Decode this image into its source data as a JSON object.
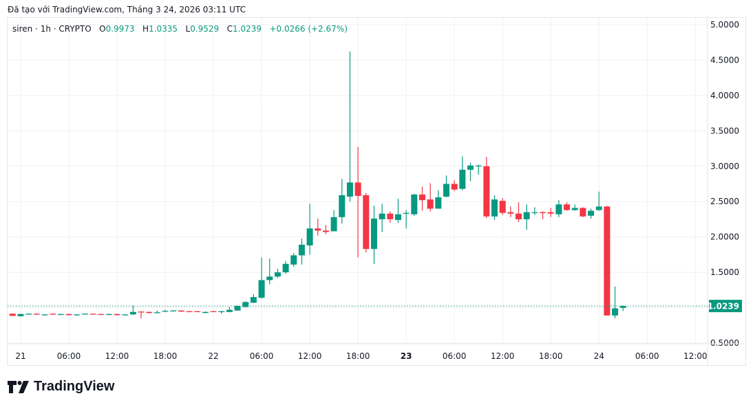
{
  "caption": "Đã tạo với TradingView.com, Tháng 3 24, 2026 03:11 UTC",
  "legend": {
    "symbol": "siren · 1h · CRYPTO",
    "o_label": "O",
    "o": "0.9973",
    "h_label": "H",
    "h": "1.0335",
    "l_label": "L",
    "l": "0.9529",
    "c_label": "C",
    "c": "1.0239",
    "change": "+0.0266 (+2.67%)"
  },
  "colors": {
    "up": "#089981",
    "down": "#f23645",
    "grid": "#f0f0f0",
    "text": "#131722"
  },
  "logo": {
    "text": "TradingView",
    "icon": "tradingview-logo-icon"
  },
  "chart_data": {
    "type": "candlestick",
    "interval": "1h",
    "first_candle": "2026-03-20 23:00",
    "ylim": [
      0.5,
      5.0
    ],
    "grid": true,
    "y_ticks": [
      "5.0000",
      "4.5000",
      "4.0000",
      "3.5000",
      "3.0000",
      "2.5000",
      "2.0000",
      "1.5000",
      "1.0000",
      "0.5000"
    ],
    "y_tick_values": [
      5.0,
      4.5,
      4.0,
      3.5,
      3.0,
      2.5,
      2.0,
      1.5,
      1.0,
      0.5
    ],
    "hidden_y_ticks": [
      "1.0000"
    ],
    "x_ticks": [
      {
        "label": "21",
        "hour": 1,
        "bold": false
      },
      {
        "label": "06:00",
        "hour": 7
      },
      {
        "label": "12:00",
        "hour": 13
      },
      {
        "label": "18:00",
        "hour": 19
      },
      {
        "label": "22",
        "hour": 25
      },
      {
        "label": "06:00",
        "hour": 31
      },
      {
        "label": "12:00",
        "hour": 37
      },
      {
        "label": "18:00",
        "hour": 43
      },
      {
        "label": "23",
        "hour": 49,
        "bold": true
      },
      {
        "label": "06:00",
        "hour": 55
      },
      {
        "label": "12:00",
        "hour": 61
      },
      {
        "label": "18:00",
        "hour": 67
      },
      {
        "label": "24",
        "hour": 73
      },
      {
        "label": "06:00",
        "hour": 79
      },
      {
        "label": "12:00",
        "hour": 85
      }
    ],
    "last_price": {
      "value": 1.0239,
      "label": "1.0239"
    },
    "ohlc": [
      [
        0.915,
        0.92,
        0.88,
        0.885
      ],
      [
        0.88,
        0.915,
        0.875,
        0.91
      ],
      [
        0.91,
        0.92,
        0.905,
        0.915
      ],
      [
        0.915,
        0.92,
        0.9,
        0.905
      ],
      [
        0.9,
        0.91,
        0.895,
        0.905
      ],
      [
        0.915,
        0.92,
        0.9,
        0.905
      ],
      [
        0.905,
        0.915,
        0.9,
        0.91
      ],
      [
        0.91,
        0.915,
        0.89,
        0.895
      ],
      [
        0.895,
        0.91,
        0.89,
        0.905
      ],
      [
        0.914,
        0.918,
        0.91,
        0.916
      ],
      [
        0.915,
        0.918,
        0.905,
        0.91
      ],
      [
        0.91,
        0.915,
        0.9,
        0.905
      ],
      [
        0.905,
        0.915,
        0.9,
        0.91
      ],
      [
        0.91,
        0.915,
        0.89,
        0.895
      ],
      [
        0.895,
        0.91,
        0.89,
        0.905
      ],
      [
        0.905,
        1.03,
        0.9,
        0.94
      ],
      [
        0.945,
        0.95,
        0.85,
        0.94
      ],
      [
        0.94,
        0.945,
        0.92,
        0.925
      ],
      [
        0.93,
        0.96,
        0.925,
        0.935
      ],
      [
        0.945,
        0.97,
        0.94,
        0.955
      ],
      [
        0.955,
        0.965,
        0.95,
        0.96
      ],
      [
        0.96,
        0.965,
        0.94,
        0.945
      ],
      [
        0.95,
        0.955,
        0.94,
        0.945
      ],
      [
        0.95,
        0.955,
        0.94,
        0.945
      ],
      [
        0.925,
        0.945,
        0.92,
        0.94
      ],
      [
        0.95,
        0.955,
        0.94,
        0.945
      ],
      [
        0.94,
        0.955,
        0.915,
        0.95
      ],
      [
        0.94,
        1.01,
        0.935,
        0.97
      ],
      [
        0.96,
        1.03,
        0.955,
        1.025
      ],
      [
        1.01,
        1.09,
        1.005,
        1.08
      ],
      [
        1.07,
        1.19,
        1.065,
        1.15
      ],
      [
        1.14,
        1.71,
        1.13,
        1.39
      ],
      [
        1.39,
        1.695,
        1.33,
        1.44
      ],
      [
        1.44,
        1.55,
        1.42,
        1.5
      ],
      [
        1.5,
        1.66,
        1.48,
        1.62
      ],
      [
        1.61,
        1.77,
        1.58,
        1.74
      ],
      [
        1.74,
        1.98,
        1.61,
        1.89
      ],
      [
        1.88,
        2.47,
        1.75,
        2.12
      ],
      [
        2.12,
        2.26,
        2.02,
        2.09
      ],
      [
        2.09,
        2.17,
        2.04,
        2.07
      ],
      [
        2.08,
        2.38,
        2.08,
        2.28
      ],
      [
        2.28,
        2.82,
        2.19,
        2.59
      ],
      [
        2.57,
        4.62,
        2.5,
        2.77
      ],
      [
        2.77,
        3.27,
        1.71,
        2.58
      ],
      [
        2.59,
        2.62,
        1.78,
        1.83
      ],
      [
        1.83,
        2.44,
        1.62,
        2.26
      ],
      [
        2.25,
        2.47,
        2.07,
        2.33
      ],
      [
        2.33,
        2.36,
        2.2,
        2.25
      ],
      [
        2.24,
        2.54,
        2.2,
        2.32
      ],
      [
        2.33,
        2.38,
        2.12,
        2.34
      ],
      [
        2.32,
        2.61,
        2.3,
        2.6
      ],
      [
        2.6,
        2.71,
        2.37,
        2.52
      ],
      [
        2.53,
        2.76,
        2.36,
        2.4
      ],
      [
        2.4,
        2.66,
        2.4,
        2.56
      ],
      [
        2.57,
        2.87,
        2.56,
        2.75
      ],
      [
        2.75,
        2.8,
        2.65,
        2.67
      ],
      [
        2.68,
        3.14,
        2.66,
        2.95
      ],
      [
        2.95,
        3.05,
        2.79,
        3.01
      ],
      [
        3.0,
        3.02,
        2.88,
        3.01
      ],
      [
        3.0,
        3.13,
        2.27,
        2.29
      ],
      [
        2.29,
        2.59,
        2.24,
        2.53
      ],
      [
        2.51,
        2.55,
        2.31,
        2.34
      ],
      [
        2.35,
        2.43,
        2.28,
        2.33
      ],
      [
        2.33,
        2.49,
        2.21,
        2.25
      ],
      [
        2.25,
        2.46,
        2.1,
        2.35
      ],
      [
        2.34,
        2.42,
        2.31,
        2.35
      ],
      [
        2.35,
        2.36,
        2.25,
        2.34
      ],
      [
        2.35,
        2.41,
        2.28,
        2.33
      ],
      [
        2.32,
        2.52,
        2.28,
        2.46
      ],
      [
        2.46,
        2.49,
        2.37,
        2.38
      ],
      [
        2.38,
        2.46,
        2.37,
        2.41
      ],
      [
        2.41,
        2.42,
        2.28,
        2.29
      ],
      [
        2.3,
        2.4,
        2.26,
        2.37
      ],
      [
        2.38,
        2.64,
        2.37,
        2.43
      ],
      [
        2.43,
        2.44,
        0.89,
        0.89
      ],
      [
        0.89,
        1.3,
        0.85,
        0.99
      ],
      [
        0.9973,
        1.0335,
        0.9529,
        1.0239
      ]
    ]
  }
}
